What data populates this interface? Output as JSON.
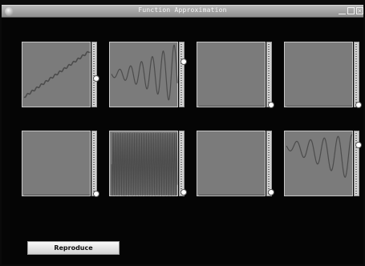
{
  "window": {
    "title": "Function Approximation",
    "controls": {
      "minimize": "_",
      "maximize": "",
      "close": "×"
    }
  },
  "panels": [
    {
      "name": "linear-trend",
      "slider_fraction": 0.55
    },
    {
      "name": "growing-oscillation",
      "slider_fraction": 0.27
    },
    {
      "name": "flat",
      "slider_fraction": 1.0
    },
    {
      "name": "flat",
      "slider_fraction": 1.0
    },
    {
      "name": "flat",
      "slider_fraction": 1.0
    },
    {
      "name": "dense-oscillation",
      "slider_fraction": 0.97
    },
    {
      "name": "flat",
      "slider_fraction": 0.97
    },
    {
      "name": "damped-oscillation",
      "slider_fraction": 0.18
    }
  ],
  "footer": {
    "reproduce_label": "Reproduce"
  },
  "colors": {
    "plot_bg": "#7b7b7b",
    "plot_line": "#4c4c4c",
    "panel_border": "#c8c8c8"
  }
}
